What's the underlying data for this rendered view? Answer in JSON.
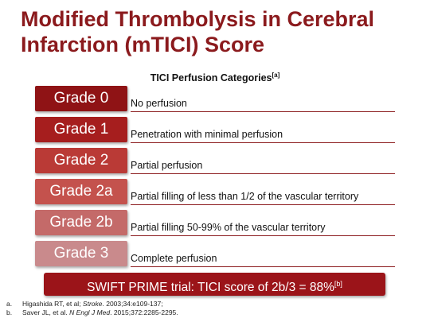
{
  "title": "Modified Thrombolysis in Cerebral Infarction (mTICI) Score",
  "subtitle": {
    "text": "TICI Perfusion Categories",
    "note": "[a]"
  },
  "grades": [
    {
      "label": "Grade 0",
      "description": "No perfusion",
      "color": "#8f1315"
    },
    {
      "label": "Grade 1",
      "description": "Penetration with minimal perfusion",
      "color": "#a61e1e"
    },
    {
      "label": "Grade 2",
      "description": "Partial perfusion",
      "color": "#ba3a36"
    },
    {
      "label": "Grade 2a",
      "description": "Partial filling of less than 1/2 of the vascular territory",
      "color": "#c4524d"
    },
    {
      "label": "Grade 2b",
      "description": "Partial filling 50-99% of the vascular territory",
      "color": "#c46a69"
    },
    {
      "label": "Grade 3",
      "description": "Complete perfusion",
      "color": "#c98a8c"
    }
  ],
  "banner": {
    "text": "SWIFT PRIME trial: TICI score of 2b/3 = 88%",
    "note": "[b]"
  },
  "references": [
    {
      "label": "a.",
      "authors": "Higashida RT, et al; ",
      "journal": "Stroke",
      "rest": ". 2003;34:e109-137;"
    },
    {
      "label": "b.",
      "authors": "Saver JL, et al. ",
      "journal": "N Engl J Med",
      "rest": ". 2015;372:2285-2295."
    }
  ]
}
